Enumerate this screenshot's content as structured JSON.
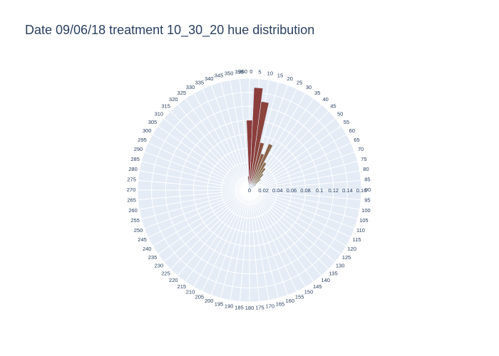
{
  "title": "Date 09/06/18 treatment 10_30_20 hue distribution",
  "colors": {
    "background": "#e5ecf6",
    "grid": "#ffffff",
    "text": "#2a3f5f"
  },
  "chart_data": {
    "type": "barpolar",
    "title": "Date 09/06/18 treatment 10_30_20 hue distribution",
    "angular_axis": {
      "direction": "clockwise",
      "rotation": "0 at top",
      "tick_step": 5,
      "range": [
        0,
        360
      ]
    },
    "radial_axis": {
      "range": [
        0,
        0.16
      ],
      "ticks": [
        "0",
        "0.02",
        "0.04",
        "0.06",
        "0.08",
        "0.1",
        "0.12",
        "0.14",
        "0.16"
      ],
      "tick_angle_deg": 90
    },
    "bar_width_deg": 5,
    "bars": [
      {
        "theta": 355,
        "r": 0.02,
        "color": "#7a4848"
      },
      {
        "theta": 0,
        "r": 0.1,
        "color": "#8b3a3a"
      },
      {
        "theta": 5,
        "r": 0.147,
        "color": "#8b3d3b"
      },
      {
        "theta": 10,
        "r": 0.128,
        "color": "#8b433c"
      },
      {
        "theta": 15,
        "r": 0.07,
        "color": "#8b4d40"
      },
      {
        "theta": 20,
        "r": 0.055,
        "color": "#8b5a44"
      },
      {
        "theta": 25,
        "r": 0.072,
        "color": "#8b6448"
      },
      {
        "theta": 30,
        "r": 0.045,
        "color": "#8b6b4a"
      },
      {
        "theta": 35,
        "r": 0.038,
        "color": "#8b704b"
      },
      {
        "theta": 40,
        "r": 0.03,
        "color": "#8b744c"
      },
      {
        "theta": 45,
        "r": 0.022,
        "color": "#8b784d"
      },
      {
        "theta": 50,
        "r": 0.012,
        "color": "#8b7b4e"
      }
    ]
  }
}
